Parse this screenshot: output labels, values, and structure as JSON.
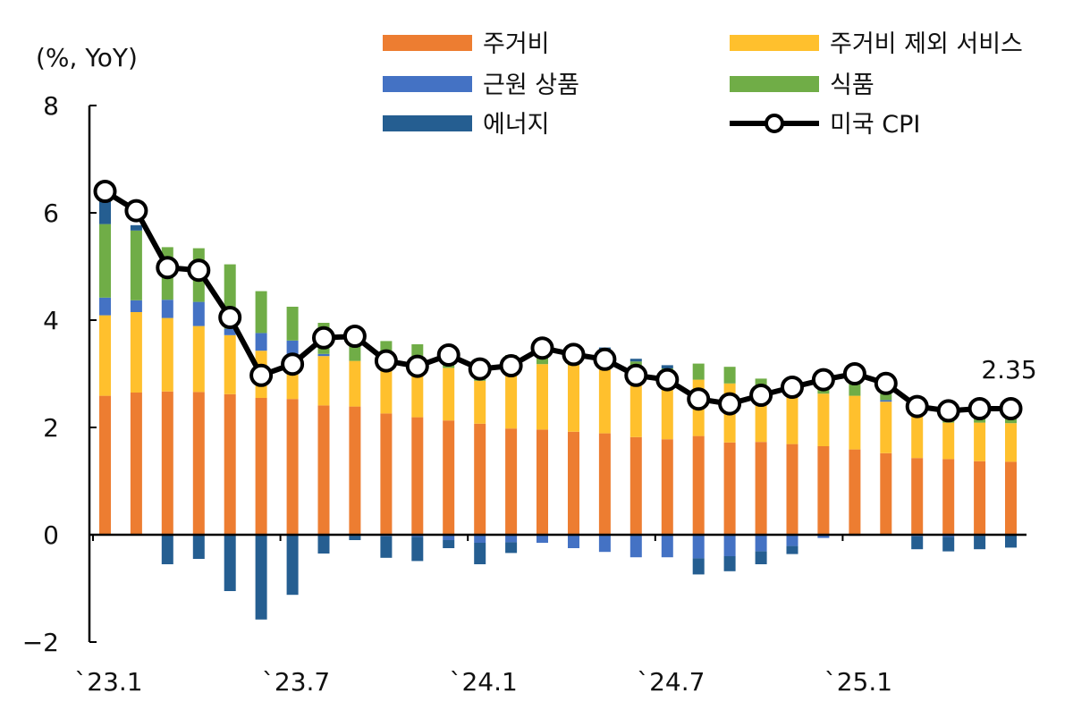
{
  "chart_data": {
    "type": "bar",
    "stacked": true,
    "unit_label": "(%, YoY)",
    "ylim": [
      -2,
      8
    ],
    "yticks": [
      "−2",
      "0",
      "2",
      "4",
      "6",
      "8"
    ],
    "ytick_values": [
      -2,
      0,
      2,
      4,
      6,
      8
    ],
    "x": [
      "2023-01",
      "2023-02",
      "2023-03",
      "2023-04",
      "2023-05",
      "2023-06",
      "2023-07",
      "2023-08",
      "2023-09",
      "2023-10",
      "2023-11",
      "2023-12",
      "2024-01",
      "2024-02",
      "2024-03",
      "2024-04",
      "2024-05",
      "2024-06",
      "2024-07",
      "2024-08",
      "2024-09",
      "2024-10",
      "2024-11",
      "2024-12",
      "2025-01",
      "2025-02",
      "2025-03",
      "2025-04",
      "2025-05",
      "2025-06"
    ],
    "xtick_labels": [
      "`23.1",
      "`23.7",
      "`24.1",
      "`24.7",
      "`25.1"
    ],
    "xtick_index": [
      0,
      6,
      12,
      18,
      24
    ],
    "colors": {
      "shelter": "#ED7D31",
      "services_ex_shelter": "#FFC02D",
      "core_goods": "#4472C4",
      "food": "#70AD47",
      "energy": "#255E91",
      "cpi": "#000000"
    },
    "series": [
      {
        "key": "shelter",
        "name": "주거비",
        "values": [
          2.59,
          2.65,
          2.67,
          2.66,
          2.62,
          2.55,
          2.53,
          2.41,
          2.39,
          2.26,
          2.19,
          2.13,
          2.07,
          1.98,
          1.96,
          1.92,
          1.89,
          1.82,
          1.78,
          1.84,
          1.72,
          1.73,
          1.69,
          1.65,
          1.59,
          1.52,
          1.43,
          1.41,
          1.37,
          1.36
        ]
      },
      {
        "key": "services_ex_shelter",
        "name": "주거비 제외 서비스",
        "values": [
          1.5,
          1.5,
          1.37,
          1.23,
          1.1,
          0.88,
          0.83,
          0.92,
          0.85,
          0.81,
          0.8,
          0.98,
          0.8,
          1.05,
          1.22,
          1.24,
          1.2,
          1.13,
          1.05,
          1.05,
          1.1,
          0.88,
          0.95,
          0.98,
          1.0,
          0.96,
          0.78,
          0.68,
          0.72,
          0.72
        ]
      },
      {
        "key": "core_goods",
        "name": "근원 상품",
        "values": [
          0.33,
          0.22,
          0.34,
          0.45,
          0.12,
          0.33,
          0.26,
          0.04,
          -0.02,
          -0.03,
          -0.04,
          -0.1,
          -0.15,
          -0.14,
          -0.15,
          -0.25,
          -0.32,
          -0.42,
          -0.42,
          -0.44,
          -0.4,
          -0.31,
          -0.21,
          -0.06,
          -0.02,
          0.03,
          -0.03,
          -0.04,
          -0.02,
          0.0
        ]
      },
      {
        "key": "food",
        "name": "식품",
        "values": [
          1.37,
          1.3,
          0.98,
          1.0,
          1.2,
          0.78,
          0.63,
          0.58,
          0.54,
          0.54,
          0.56,
          0.4,
          0.41,
          0.32,
          0.28,
          0.3,
          0.3,
          0.28,
          0.27,
          0.3,
          0.31,
          0.3,
          0.3,
          0.3,
          0.29,
          0.28,
          0.3,
          0.3,
          0.3,
          0.3
        ]
      },
      {
        "key": "energy",
        "name": "에너지",
        "values": [
          0.62,
          0.1,
          -0.55,
          -0.45,
          -1.05,
          -1.58,
          -1.12,
          -0.35,
          -0.08,
          -0.4,
          -0.45,
          -0.15,
          -0.4,
          -0.2,
          0.05,
          0.03,
          0.1,
          0.05,
          0.06,
          -0.3,
          -0.28,
          -0.24,
          -0.15,
          0.01,
          0.05,
          0.06,
          -0.24,
          -0.27,
          -0.25,
          -0.24
        ]
      }
    ],
    "line": {
      "key": "cpi",
      "name": "미국 CPI",
      "values": [
        6.4,
        6.04,
        4.98,
        4.93,
        4.05,
        2.97,
        3.18,
        3.67,
        3.7,
        3.24,
        3.14,
        3.35,
        3.09,
        3.15,
        3.48,
        3.36,
        3.27,
        2.97,
        2.89,
        2.53,
        2.44,
        2.6,
        2.75,
        2.89,
        3.0,
        2.82,
        2.39,
        2.31,
        2.35,
        2.35
      ]
    },
    "end_label": "2.35",
    "legend_position": "top",
    "grid": false
  }
}
